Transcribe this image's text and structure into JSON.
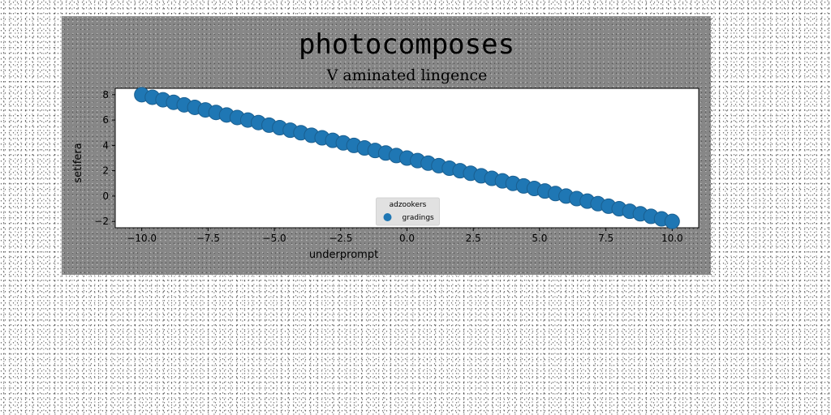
{
  "figure": {
    "suptitle": "photocomposes",
    "background_color": "#878787"
  },
  "chart_data": {
    "type": "scatter",
    "title": "V aminated lingence",
    "xlabel": "underprompt",
    "ylabel": "setifera",
    "xlim": [
      -11.0,
      11.0
    ],
    "ylim": [
      -2.5,
      8.5
    ],
    "xticks": [
      -10.0,
      -7.5,
      -5.0,
      -2.5,
      0.0,
      2.5,
      5.0,
      7.5,
      10.0
    ],
    "xtick_labels": [
      "−10.0",
      "−7.5",
      "−5.0",
      "−2.5",
      "0.0",
      "2.5",
      "5.0",
      "7.5",
      "10.0"
    ],
    "yticks": [
      -2,
      0,
      2,
      4,
      6,
      8
    ],
    "ytick_labels": [
      "−2",
      "0",
      "2",
      "4",
      "6",
      "8"
    ],
    "grid": false,
    "legend": {
      "title": "adzookers",
      "placement": "lower-center",
      "entries": [
        "gradings"
      ]
    },
    "series": [
      {
        "name": "gradings",
        "color": "#1f77b4",
        "marker": "circle",
        "x": [
          -10.0,
          -9.6,
          -9.2,
          -8.8,
          -8.4,
          -8.0,
          -7.6,
          -7.2,
          -6.8,
          -6.4,
          -6.0,
          -5.6,
          -5.2,
          -4.8,
          -4.4,
          -4.0,
          -3.6,
          -3.2,
          -2.8,
          -2.4,
          -2.0,
          -1.6,
          -1.2,
          -0.8,
          -0.4,
          0.0,
          0.4,
          0.8,
          1.2,
          1.6,
          2.0,
          2.4,
          2.8,
          3.2,
          3.6,
          4.0,
          4.4,
          4.8,
          5.2,
          5.6,
          6.0,
          6.4,
          6.8,
          7.2,
          7.6,
          8.0,
          8.4,
          8.8,
          9.2,
          9.6,
          10.0
        ],
        "y": [
          8.0,
          7.8,
          7.6,
          7.4,
          7.2,
          7.0,
          6.8,
          6.6,
          6.4,
          6.2,
          6.0,
          5.8,
          5.6,
          5.4,
          5.2,
          5.0,
          4.8,
          4.6,
          4.4,
          4.2,
          4.0,
          3.8,
          3.6,
          3.4,
          3.2,
          3.0,
          2.8,
          2.6,
          2.4,
          2.2,
          2.0,
          1.8,
          1.6,
          1.4,
          1.2,
          1.0,
          0.8,
          0.6,
          0.4,
          0.2,
          0.0,
          -0.2,
          -0.4,
          -0.6,
          -0.8,
          -1.0,
          -1.2,
          -1.4,
          -1.6,
          -1.8,
          -2.0
        ]
      }
    ]
  }
}
